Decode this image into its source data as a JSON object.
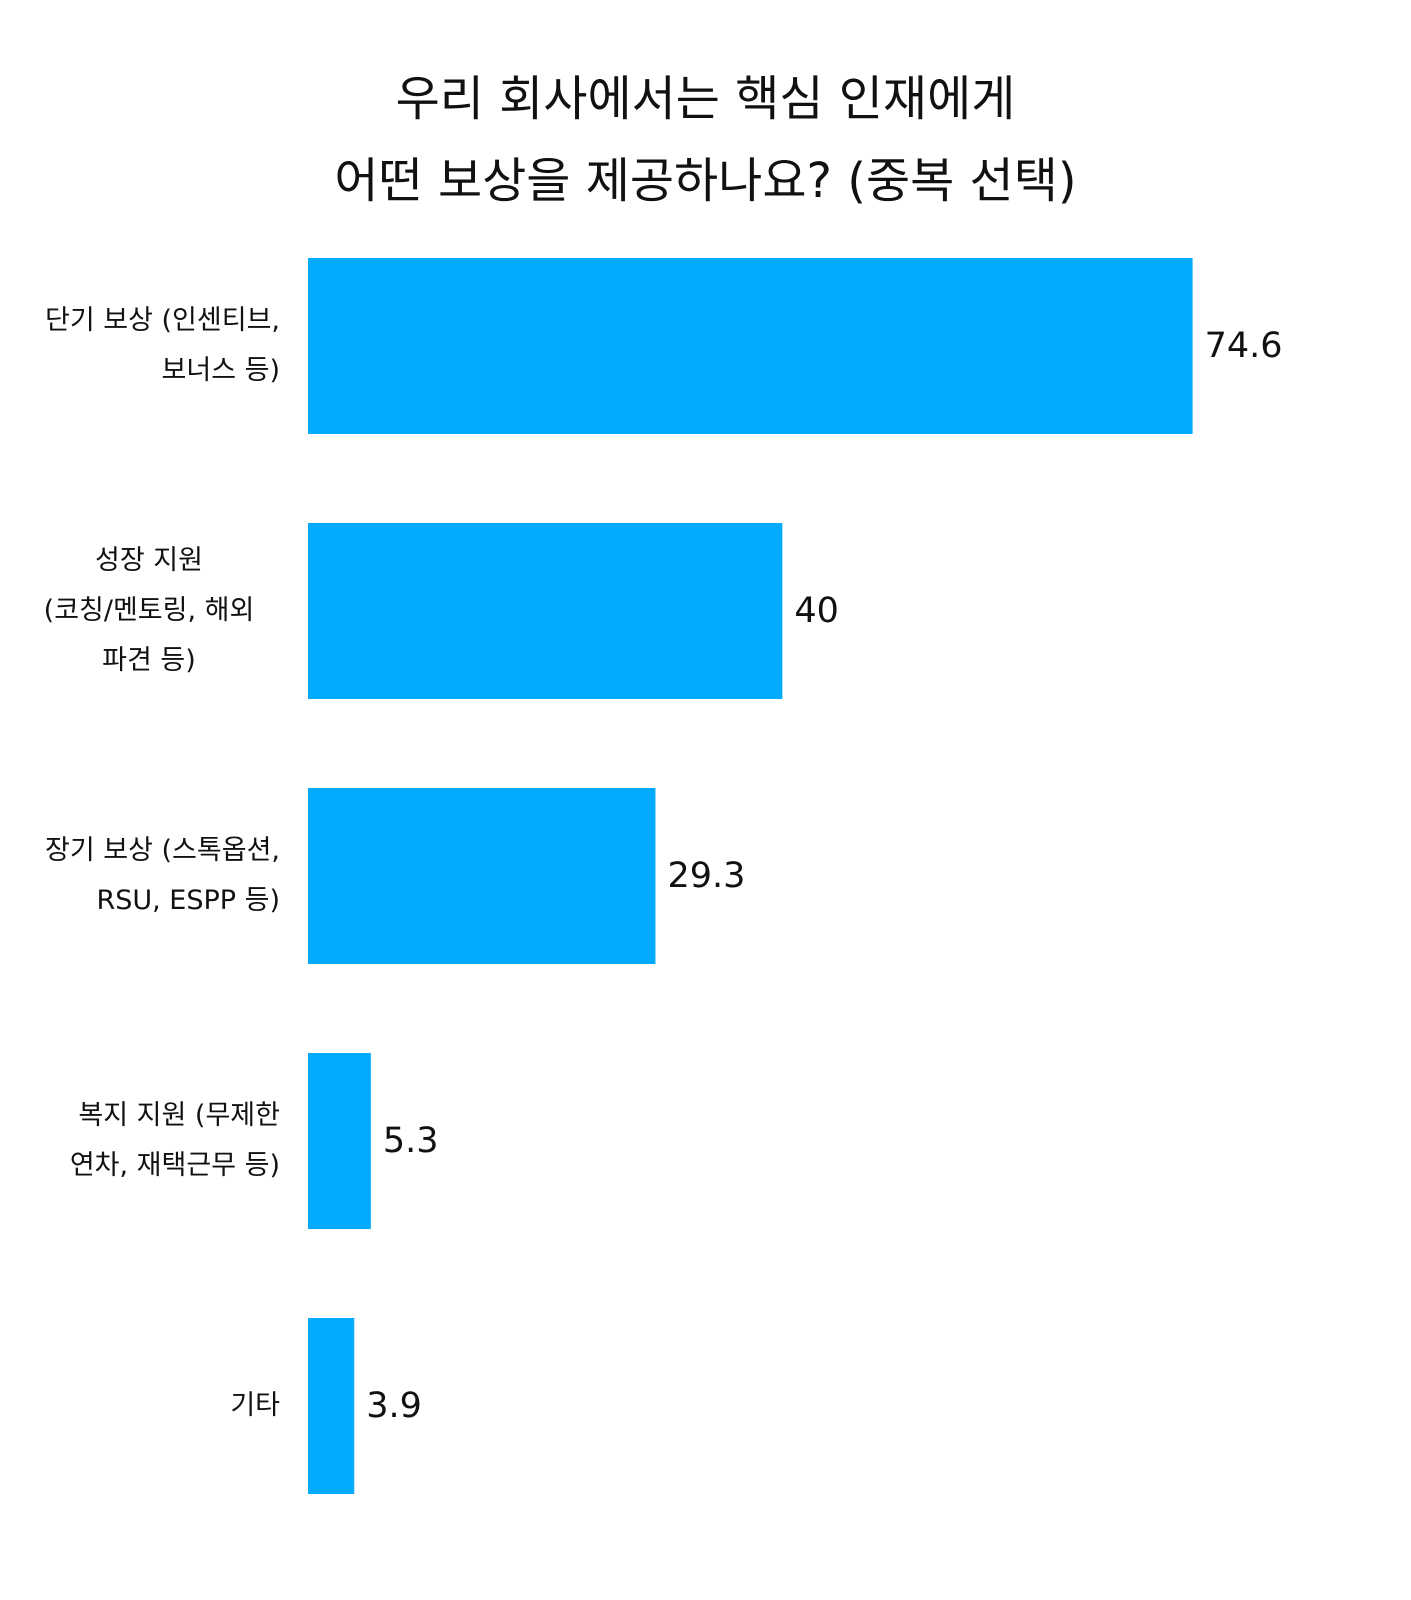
{
  "chart_data": {
    "type": "bar",
    "orientation": "horizontal",
    "title_lines": [
      "우리 회사에서는 핵심 인재에게",
      "어떤 보상을 제공하나요? (중복 선택)"
    ],
    "categories": [
      [
        "단기 보상 (인센티브,",
        "보너스 등)"
      ],
      [
        "성장 지원",
        "(코칭/멘토링, 해외",
        "파견 등)"
      ],
      [
        "장기 보상 (스톡옵션,",
        "RSU, ESPP 등)"
      ],
      [
        "복지 지원 (무제한",
        "연차, 재택근무 등)"
      ],
      [
        "기타"
      ]
    ],
    "values": [
      74.6,
      40,
      29.3,
      5.3,
      3.9
    ],
    "value_labels": [
      "74.6",
      "40",
      "29.3",
      "5.3",
      "3.9"
    ],
    "bar_color": "#03ABFF",
    "axis_visible": false,
    "grid": false,
    "xlim": [
      0,
      100
    ]
  }
}
